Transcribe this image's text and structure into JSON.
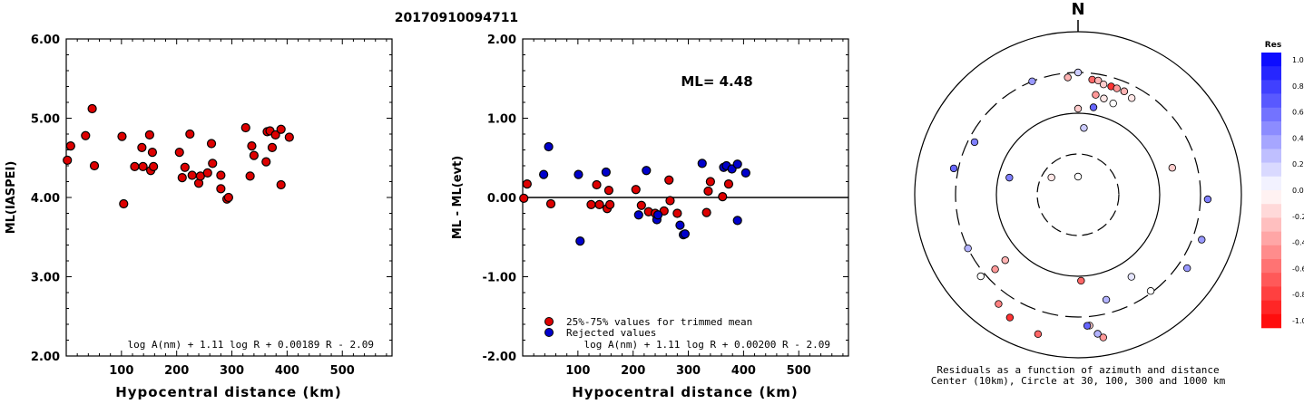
{
  "title": "20170910094711",
  "chart_data": [
    {
      "type": "scatter",
      "ylabel": "ML(IASPEI)",
      "xlabel": "Hypocentral distance (km)",
      "xticks": [
        100,
        200,
        300,
        400,
        500
      ],
      "yticks": [
        "2.00",
        "3.00",
        "4.00",
        "5.00",
        "6.00"
      ],
      "xlim": [
        0,
        590
      ],
      "ylim": [
        2.0,
        6.0
      ],
      "formula": "log A(nm) + 1.11 log R + 0.00189 R - 2.09",
      "color": "#dd0000",
      "points": [
        [
          2,
          4.47
        ],
        [
          8,
          4.65
        ],
        [
          35,
          4.78
        ],
        [
          47,
          5.12
        ],
        [
          51,
          4.4
        ],
        [
          101,
          4.77
        ],
        [
          104,
          3.92
        ],
        [
          124,
          4.39
        ],
        [
          137,
          4.63
        ],
        [
          139,
          4.39
        ],
        [
          151,
          4.79
        ],
        [
          153,
          4.34
        ],
        [
          156,
          4.57
        ],
        [
          158,
          4.39
        ],
        [
          205,
          4.57
        ],
        [
          210,
          4.25
        ],
        [
          215,
          4.38
        ],
        [
          224,
          4.8
        ],
        [
          228,
          4.28
        ],
        [
          240,
          4.18
        ],
        [
          243,
          4.27
        ],
        [
          256,
          4.31
        ],
        [
          263,
          4.68
        ],
        [
          265,
          4.43
        ],
        [
          280,
          4.28
        ],
        [
          280,
          4.11
        ],
        [
          291,
          3.98
        ],
        [
          294,
          4.0
        ],
        [
          325,
          4.88
        ],
        [
          333,
          4.27
        ],
        [
          336,
          4.65
        ],
        [
          340,
          4.53
        ],
        [
          362,
          4.45
        ],
        [
          364,
          4.83
        ],
        [
          369,
          4.84
        ],
        [
          373,
          4.63
        ],
        [
          379,
          4.79
        ],
        [
          389,
          4.86
        ],
        [
          389,
          4.16
        ],
        [
          404,
          4.76
        ]
      ]
    },
    {
      "type": "scatter",
      "ylabel": "ML - ML(evt)",
      "xlabel": "Hypocentral distance (km)",
      "xticks": [
        100,
        200,
        300,
        400,
        500
      ],
      "yticks": [
        "-2.00",
        "-1.00",
        "0.00",
        "1.00",
        "2.00"
      ],
      "xlim": [
        0,
        590
      ],
      "ylim": [
        -2.0,
        2.0
      ],
      "annotation": "ML= 4.48",
      "formula": "log A(nm) + 1.11 log R + 0.00200 R - 2.09",
      "legend": [
        {
          "label": "25%-75% values for trimmed mean",
          "color": "#dd0000"
        },
        {
          "label": "Rejected values",
          "color": "#0000cc"
        }
      ],
      "trimmed": [
        [
          2,
          -0.01
        ],
        [
          8,
          0.17
        ],
        [
          51,
          -0.08
        ],
        [
          124,
          -0.09
        ],
        [
          134,
          0.16
        ],
        [
          139,
          -0.09
        ],
        [
          153,
          -0.14
        ],
        [
          158,
          -0.09
        ],
        [
          156,
          0.09
        ],
        [
          205,
          0.1
        ],
        [
          215,
          -0.1
        ],
        [
          228,
          -0.18
        ],
        [
          240,
          -0.2
        ],
        [
          256,
          -0.17
        ],
        [
          265,
          0.22
        ],
        [
          267,
          -0.04
        ],
        [
          280,
          -0.2
        ],
        [
          333,
          -0.19
        ],
        [
          336,
          0.08
        ],
        [
          340,
          0.2
        ],
        [
          362,
          0.01
        ],
        [
          373,
          0.17
        ]
      ],
      "rejected": [
        [
          38,
          0.29
        ],
        [
          47,
          0.64
        ],
        [
          101,
          0.29
        ],
        [
          104,
          -0.55
        ],
        [
          151,
          0.32
        ],
        [
          210,
          -0.22
        ],
        [
          224,
          0.34
        ],
        [
          243,
          -0.28
        ],
        [
          245,
          -0.22
        ],
        [
          285,
          -0.35
        ],
        [
          291,
          -0.47
        ],
        [
          294,
          -0.46
        ],
        [
          325,
          0.43
        ],
        [
          364,
          0.38
        ],
        [
          369,
          0.4
        ],
        [
          379,
          0.36
        ],
        [
          389,
          0.42
        ],
        [
          389,
          -0.29
        ],
        [
          404,
          0.31
        ]
      ]
    },
    {
      "type": "polar",
      "north_label": "N",
      "caption_line1": "Residuals as a function of azimuth and distance",
      "caption_line2": "Center (10km), Circle at 30, 100, 300 and 1000 km",
      "colorbar_title": "Res",
      "colorbar_ticks": [
        "1.0",
        "0.8",
        "0.6",
        "0.4",
        "0.2",
        "0.0",
        "-0.2",
        "-0.4",
        "-0.6",
        "-0.8",
        "-1.0"
      ],
      "stations": [
        [
          0,
          20,
          0.0
        ],
        [
          303,
          35,
          -0.1
        ],
        [
          5,
          74,
          0.2
        ],
        [
          0,
          95,
          -0.2
        ],
        [
          10,
          98,
          0.6
        ],
        [
          24,
          125,
          0.3
        ],
        [
          284,
          78,
          0.5
        ],
        [
          178,
          95,
          -0.6
        ],
        [
          147,
          108,
          0.1
        ],
        [
          228,
          108,
          -0.3
        ],
        [
          175,
          145,
          -0.2
        ],
        [
          170,
          160,
          -0.4
        ],
        [
          196,
          160,
          -0.6
        ],
        [
          209,
          155,
          -0.8
        ],
        [
          216,
          149,
          -0.5
        ],
        [
          228,
          123,
          -0.4
        ],
        [
          230,
          140,
          0.0
        ],
        [
          244,
          135,
          0.3
        ],
        [
          282,
          140,
          0.6
        ],
        [
          297,
          128,
          0.5
        ],
        [
          338,
          135,
          0.4
        ],
        [
          0,
          135,
          0.2
        ],
        [
          355,
          130,
          -0.3
        ],
        [
          7,
          128,
          -0.6
        ],
        [
          10,
          128,
          -0.3
        ],
        [
          13,
          125,
          -0.2
        ],
        [
          17,
          125,
          -0.8
        ],
        [
          20,
          125,
          -0.4
        ],
        [
          24,
          125,
          -0.3
        ],
        [
          29,
          122,
          -0.1
        ],
        [
          10,
          112,
          -0.4
        ],
        [
          15,
          110,
          -0.1
        ],
        [
          21,
          108,
          0.0
        ],
        [
          74,
          108,
          -0.2
        ],
        [
          92,
          143,
          0.5
        ],
        [
          110,
          145,
          0.4
        ],
        [
          124,
          145,
          0.4
        ],
        [
          143,
          133,
          0.0
        ],
        [
          165,
          120,
          0.3
        ],
        [
          176,
          145,
          0.6
        ],
        [
          172,
          155,
          0.3
        ]
      ]
    }
  ]
}
